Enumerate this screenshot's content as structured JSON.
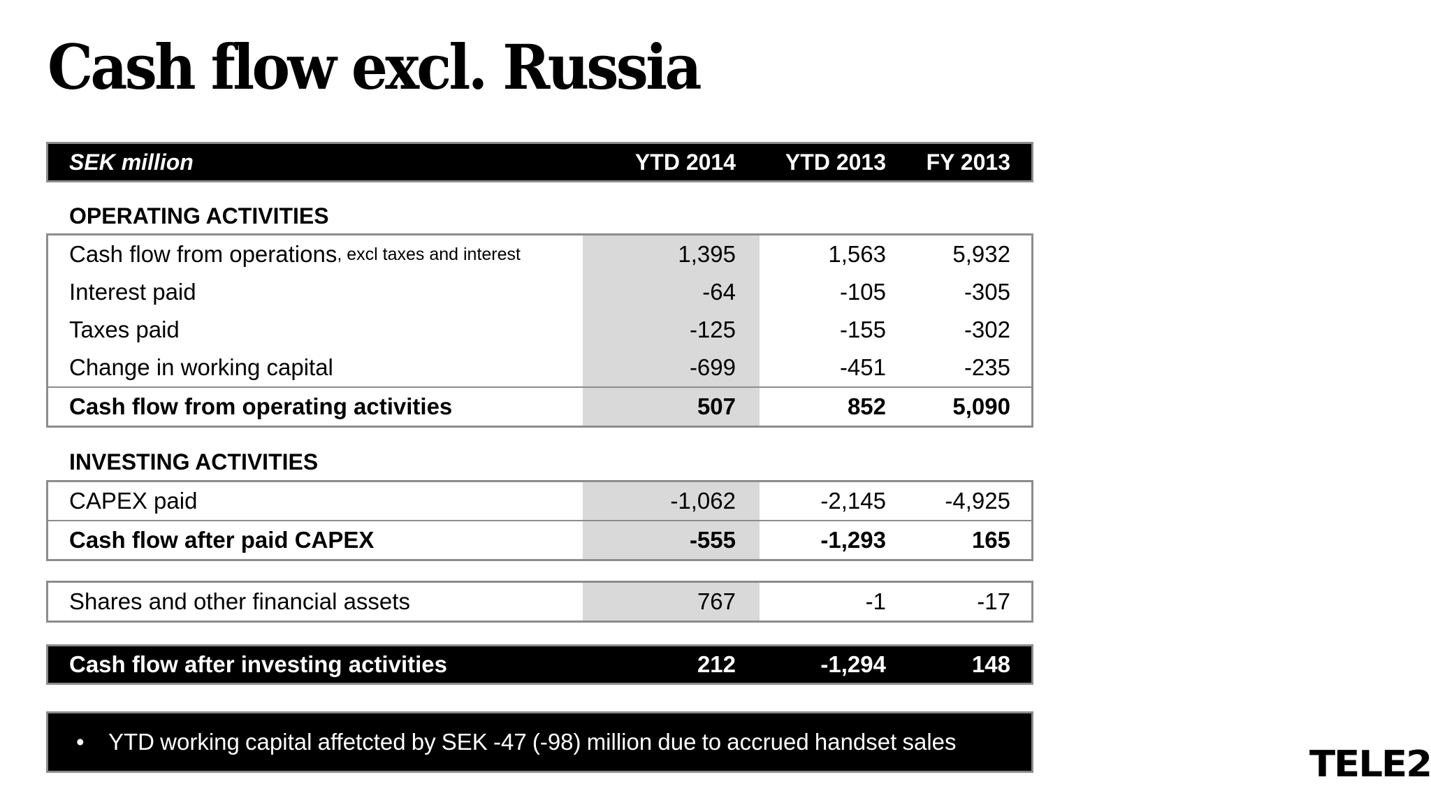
{
  "title": "Cash flow excl. Russia",
  "header": {
    "label": "SEK million",
    "col1": "YTD 2014",
    "col2": "YTD 2013",
    "col3": "FY 2013"
  },
  "operating": {
    "heading": "OPERATING ACTIVITIES",
    "rows": [
      {
        "label": "Cash flow from operations",
        "suffix": ", excl taxes and interest",
        "v1": "1,395",
        "v2": "1,563",
        "v3": "5,932"
      },
      {
        "label": "Interest paid",
        "v1": "-64",
        "v2": "-105",
        "v3": "-305"
      },
      {
        "label": "Taxes paid",
        "v1": "-125",
        "v2": "-155",
        "v3": "-302"
      },
      {
        "label": "Change in working capital",
        "v1": "-699",
        "v2": "-451",
        "v3": "-235"
      }
    ],
    "total": {
      "label": "Cash flow from operating activities",
      "v1": "507",
      "v2": "852",
      "v3": "5,090"
    }
  },
  "investing": {
    "heading": "INVESTING ACTIVITIES",
    "rows": [
      {
        "label": "CAPEX paid",
        "v1": "-1,062",
        "v2": "-2,145",
        "v3": "-4,925"
      }
    ],
    "total": {
      "label": "Cash flow after paid CAPEX",
      "v1": "-555",
      "v2": "-1,293",
      "v3": "165"
    }
  },
  "shares": {
    "label": "Shares and other financial assets",
    "v1": "767",
    "v2": "-1",
    "v3": "-17"
  },
  "after_investing": {
    "label": "Cash flow after investing activities",
    "v1": "212",
    "v2": "-1,294",
    "v3": "148"
  },
  "note": {
    "bullet": "•",
    "text": "YTD working capital affetcted by SEK -47 (-98) million due to accrued handset sales"
  },
  "logo": "TELE2"
}
